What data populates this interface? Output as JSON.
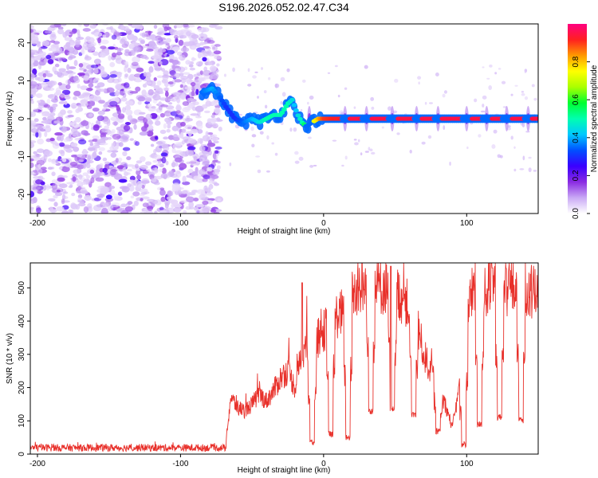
{
  "title": "S196.2026.052.02.47.C34",
  "chart_data": [
    {
      "type": "heatmap",
      "name": "spectrogram",
      "xlabel": "Height of straight line (km)",
      "ylabel": "Frequency (Hz)",
      "xlim": [
        -205,
        150
      ],
      "ylim": [
        -25,
        25
      ],
      "x_ticks": [
        "-200",
        "-100",
        "0",
        "100"
      ],
      "x_tick_values": [
        -200,
        -100,
        0,
        100
      ],
      "y_ticks": [
        "-20",
        "-10",
        "0",
        "10",
        "20"
      ],
      "y_tick_values": [
        -20,
        -10,
        0,
        10,
        20
      ],
      "noise_region_x": [
        -205,
        -73
      ],
      "ridge": {
        "x": [
          -85,
          -78,
          -73,
          -68,
          -62,
          -56,
          -50,
          -45,
          -40,
          -35,
          -30,
          -25,
          -22,
          -20,
          -18,
          -15,
          -12,
          -8,
          -4,
          0,
          20,
          40,
          60,
          80,
          100,
          120,
          150
        ],
        "freq": [
          7,
          8,
          6,
          3,
          0,
          -1,
          0,
          -1,
          0,
          1,
          1,
          4,
          5,
          3,
          1,
          -1,
          -2,
          -1,
          0,
          0,
          0,
          0,
          0,
          0,
          0,
          0,
          0
        ],
        "amplitude": [
          0.35,
          0.4,
          0.35,
          0.3,
          0.3,
          0.35,
          0.4,
          0.45,
          0.5,
          0.5,
          0.5,
          0.5,
          0.45,
          0.4,
          0.45,
          0.5,
          0.6,
          0.7,
          0.8,
          0.9,
          0.95,
          0.95,
          0.95,
          0.95,
          0.95,
          0.95,
          0.95
        ]
      },
      "notch_x": [
        -10,
        15,
        30,
        48,
        65,
        80,
        100,
        114,
        128,
        143
      ]
    },
    {
      "type": "line",
      "name": "snr",
      "xlabel": "Height of straight line (km)",
      "ylabel": "SNR (10 * v/v)",
      "xlim": [
        -205,
        150
      ],
      "ylim": [
        0,
        575
      ],
      "x_ticks": [
        "-200",
        "-100",
        "0",
        "100"
      ],
      "x_tick_values": [
        -200,
        -100,
        0,
        100
      ],
      "y_ticks": [
        "0",
        "100",
        "200",
        "300",
        "400",
        "500"
      ],
      "y_tick_values": [
        0,
        100,
        200,
        300,
        400,
        500
      ],
      "color": "#e8302a",
      "envelope": {
        "x": [
          -205,
          -130,
          -75,
          -68,
          -65,
          -60,
          -55,
          -50,
          -45,
          -40,
          -35,
          -30,
          -25,
          -20,
          -15,
          -10,
          -5,
          0,
          5,
          10,
          15,
          20,
          25,
          30,
          35,
          40,
          45,
          50,
          55,
          60,
          65,
          70,
          75,
          80,
          85,
          90,
          95,
          100,
          105,
          110,
          115,
          120,
          125,
          130,
          135,
          140,
          145,
          150
        ],
        "y": [
          18,
          18,
          20,
          45,
          170,
          140,
          130,
          150,
          180,
          160,
          190,
          230,
          250,
          200,
          310,
          330,
          340,
          370,
          400,
          420,
          430,
          480,
          500,
          500,
          510,
          500,
          510,
          490,
          470,
          440,
          400,
          300,
          250,
          200,
          150,
          80,
          200,
          420,
          500,
          490,
          495,
          500,
          480,
          510,
          490,
          500,
          480,
          490
        ]
      },
      "spikes": [
        {
          "x": -15,
          "y": 515
        },
        {
          "x": 47,
          "y": 565
        },
        {
          "x": 118,
          "y": 560
        }
      ],
      "dips": [
        {
          "x": -8,
          "y": 25
        },
        {
          "x": 5,
          "y": 50
        },
        {
          "x": 17,
          "y": 40
        },
        {
          "x": 33,
          "y": 120
        },
        {
          "x": 48,
          "y": 125
        },
        {
          "x": 63,
          "y": 110
        },
        {
          "x": 80,
          "y": 60
        },
        {
          "x": 98,
          "y": 20
        },
        {
          "x": 109,
          "y": 80
        },
        {
          "x": 123,
          "y": 100
        },
        {
          "x": 138,
          "y": 90
        }
      ]
    }
  ],
  "colorbar": {
    "label": "Normalized spectral amplitude",
    "ticks": [
      "0.0",
      "0.2",
      "0.4",
      "0.6",
      "0.8"
    ],
    "tick_values": [
      0,
      0.2,
      0.4,
      0.6,
      0.8
    ],
    "range": [
      0,
      1
    ],
    "stops": [
      "#ffffff",
      "#c9a8f5",
      "#8a2be2",
      "#3a00ff",
      "#0050ff",
      "#00c8ff",
      "#00ffb0",
      "#00ff30",
      "#aaff00",
      "#ffff00",
      "#ff9900",
      "#ff2020",
      "#ff0080"
    ]
  }
}
